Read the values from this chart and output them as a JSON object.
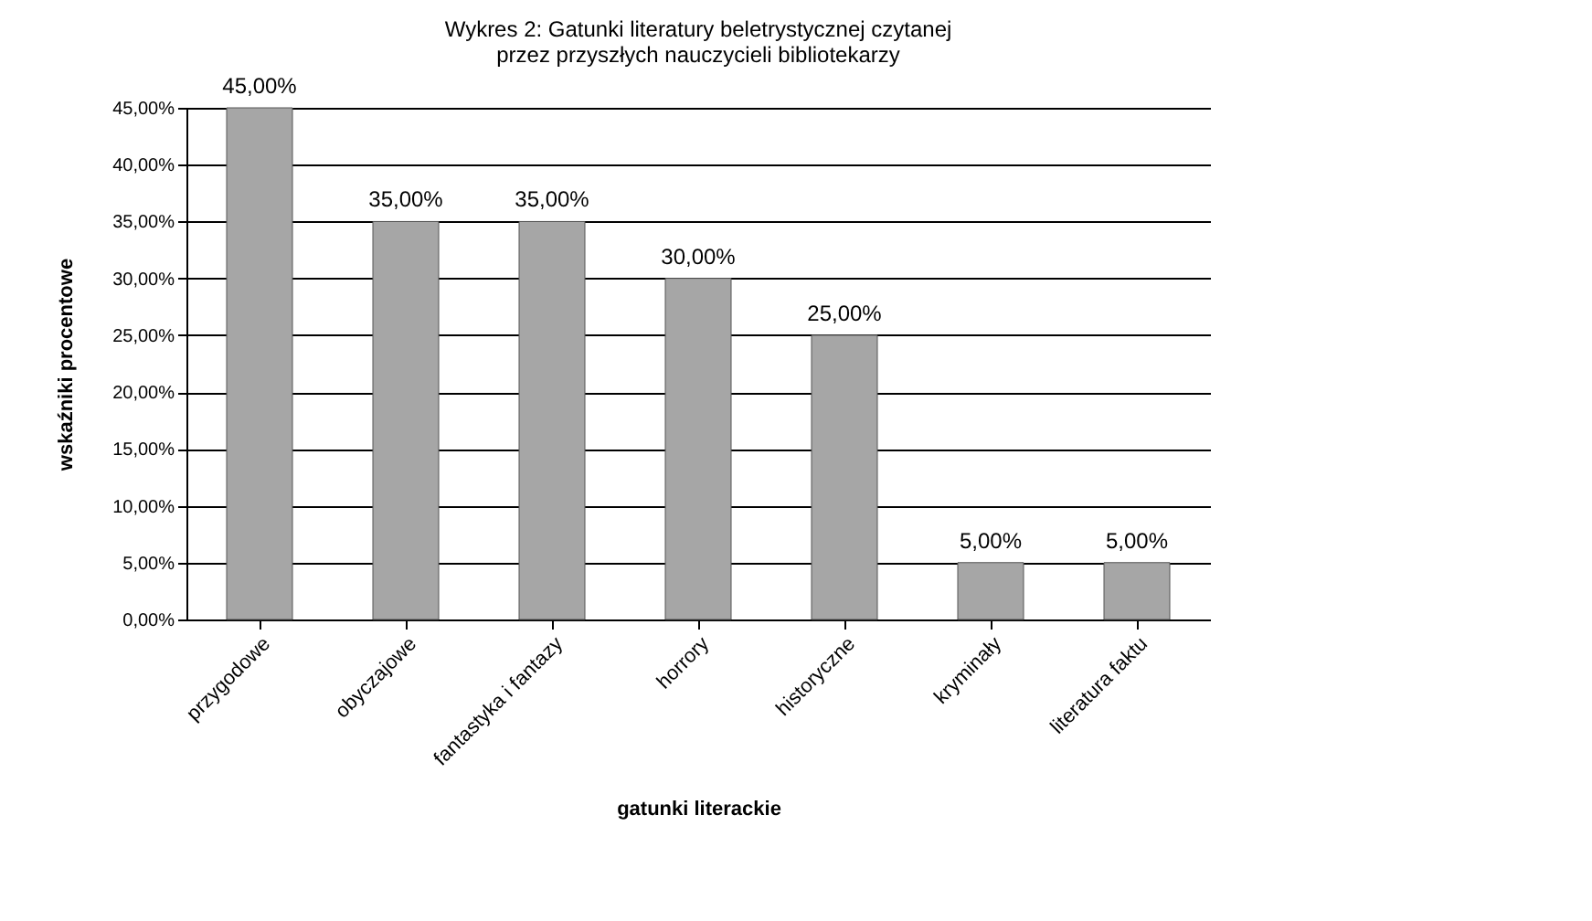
{
  "chart_data": {
    "type": "bar",
    "title": [
      "Wykres 2: Gatunki literatury beletrystycznej czytanej",
      "przez przyszłych nauczycieli bibliotekarzy"
    ],
    "xlabel": "gatunki literackie",
    "ylabel": "wskaźniki procentowe",
    "categories": [
      "przygodowe",
      "obyczajowe",
      "fantastyka i fantazy",
      "horrory",
      "historyczne",
      "kryminały",
      "literatura faktu"
    ],
    "values": [
      45,
      35,
      35,
      30,
      25,
      5,
      5
    ],
    "value_labels": [
      "45,00%",
      "35,00%",
      "35,00%",
      "30,00%",
      "25,00%",
      "5,00%",
      "5,00%"
    ],
    "color": "#a6a6a6",
    "ylim": [
      0,
      45
    ],
    "yticks": [
      {
        "value": 0,
        "label": "0,00%"
      },
      {
        "value": 5,
        "label": "5,00%"
      },
      {
        "value": 10,
        "label": "10,00%"
      },
      {
        "value": 15,
        "label": "15,00%"
      },
      {
        "value": 20,
        "label": "20,00%"
      },
      {
        "value": 25,
        "label": "25,00%"
      },
      {
        "value": 30,
        "label": "30,00%"
      },
      {
        "value": 35,
        "label": "35,00%"
      },
      {
        "value": 40,
        "label": "40,00%"
      },
      {
        "value": 45,
        "label": "45,00%"
      }
    ],
    "grid": "y"
  }
}
